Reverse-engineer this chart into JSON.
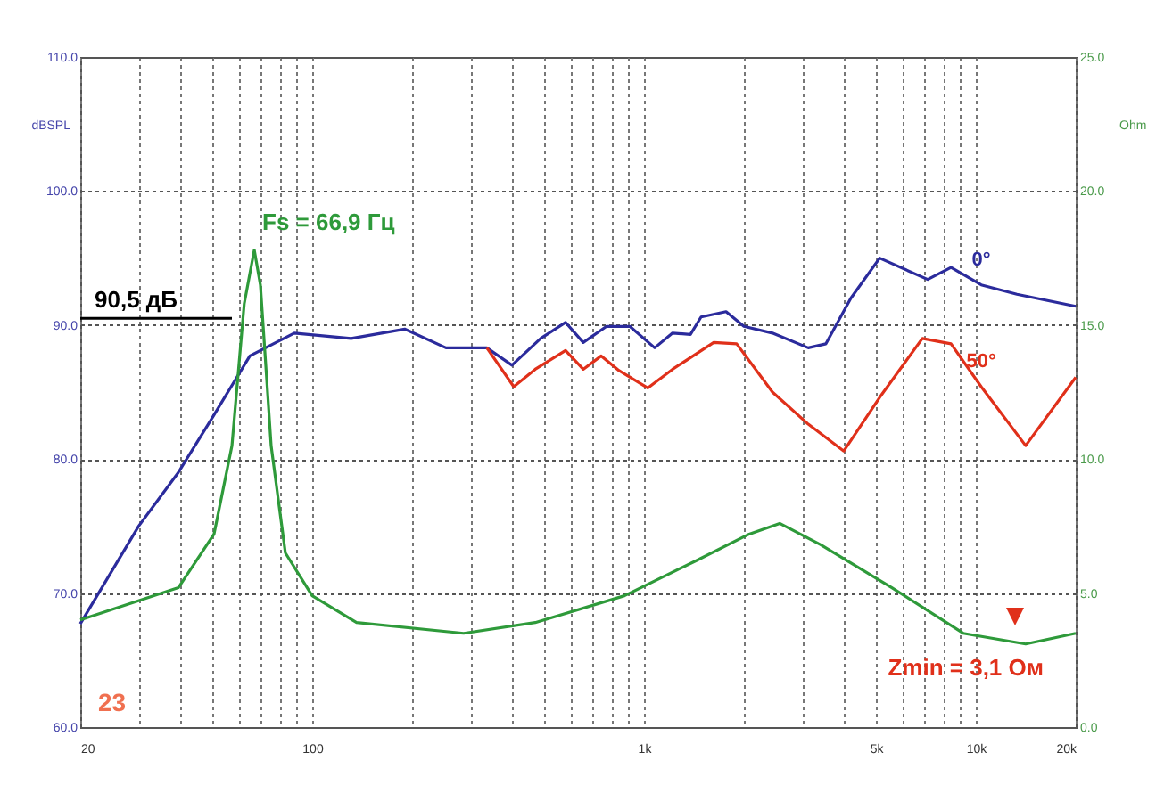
{
  "chart_data": {
    "type": "line",
    "ylabel": "dBSPL",
    "y2label": "Ohm",
    "grid": true,
    "marker": "none",
    "line_style": "solid",
    "xlim": [
      20,
      20000
    ],
    "log": "x",
    "xticks": [
      20,
      {
        "value": 30,
        "label": null
      },
      {
        "value": 40,
        "label": null
      },
      {
        "value": 50,
        "label": null
      },
      {
        "value": 60,
        "label": null
      },
      {
        "value": 70,
        "label": null
      },
      {
        "value": 80,
        "label": null
      },
      {
        "value": 90,
        "label": null
      },
      100,
      {
        "value": 200,
        "label": null
      },
      {
        "value": 300,
        "label": null
      },
      {
        "value": 400,
        "label": null
      },
      {
        "value": 500,
        "label": null
      },
      {
        "value": 600,
        "label": null
      },
      {
        "value": 700,
        "label": null
      },
      {
        "value": 800,
        "label": null
      },
      {
        "value": 900,
        "label": null
      },
      {
        "value": 1000,
        "label": "1k"
      },
      {
        "value": 2000,
        "label": null
      },
      {
        "value": 3000,
        "label": null
      },
      {
        "value": 4000,
        "label": null
      },
      {
        "value": 5000,
        "label": "5k"
      },
      {
        "value": 6000,
        "label": null
      },
      {
        "value": 7000,
        "label": null
      },
      {
        "value": 8000,
        "label": null
      },
      {
        "value": 9000,
        "label": null
      },
      {
        "value": 10000,
        "label": "10k"
      },
      {
        "value": 20000,
        "label": "20k"
      }
    ],
    "ylim": [
      60,
      110
    ],
    "yticks": [
      {
        "value": 60,
        "label": "60.0"
      },
      {
        "value": 70,
        "label": "70.0"
      },
      {
        "value": 80,
        "label": "80.0"
      },
      {
        "value": 90,
        "label": "90.0"
      },
      {
        "value": 100,
        "label": "100.0"
      },
      {
        "value": 110,
        "label": "110.0"
      }
    ],
    "y2lim": [
      0,
      25
    ],
    "y2ticks": [
      {
        "value": 0,
        "label": "0.0"
      },
      {
        "value": 5,
        "label": "5.0"
      },
      {
        "value": 10,
        "label": "10.0"
      },
      {
        "value": 15,
        "label": "15.0"
      },
      {
        "value": 20,
        "label": "20.0"
      },
      {
        "value": 25,
        "label": "25.0"
      }
    ],
    "series": [
      {
        "name": "0°",
        "color": "#2b2b9c",
        "x": [
          20,
          30,
          39.5,
          50.6,
          64.9,
          88.3,
          131,
          190,
          253,
          336,
          400,
          488,
          580,
          656,
          771,
          906,
          1077,
          1219,
          1380,
          1486,
          1767,
          2000,
          2438,
          3126,
          3534,
          4200,
          5130,
          7160,
          8420,
          10380,
          13300,
          20000
        ],
        "values": [
          67.7,
          75,
          79.0,
          83.3,
          87.7,
          89.4,
          89.0,
          89.7,
          88.3,
          88.3,
          87.0,
          89.0,
          90.2,
          88.7,
          89.9,
          89.9,
          88.3,
          89.4,
          89.3,
          90.6,
          91.0,
          89.9,
          89.4,
          88.3,
          88.6,
          92.0,
          95.0,
          93.4,
          94.3,
          93.0,
          92.3,
          91.4
        ]
      },
      {
        "name": "50°",
        "color": "#e0301a",
        "x": [
          336,
          405,
          470,
          580,
          656,
          743,
          841,
          1026,
          1219,
          1622,
          1902,
          2438,
          3126,
          4000,
          5130,
          6900,
          8420,
          10380,
          14130,
          20000
        ],
        "values": [
          88.3,
          85.4,
          86.7,
          88.1,
          86.7,
          87.7,
          86.6,
          85.3,
          86.7,
          88.7,
          88.6,
          85.0,
          82.6,
          80.6,
          84.6,
          89.0,
          88.6,
          85.4,
          81.0,
          86.1
        ]
      },
      {
        "color": "#2e9a3a",
        "axis": "y2",
        "x": [
          20,
          39.5,
          50.6,
          57.3,
          62.4,
          66.9,
          69.8,
          75.2,
          83,
          100,
          136,
          286,
          470,
          873,
          1432,
          2075,
          2564,
          3408,
          5585,
          9160,
          14130,
          20000
        ],
        "values": [
          4.0,
          5.2,
          7.2,
          10.5,
          15.8,
          17.8,
          16.5,
          10.5,
          6.5,
          4.9,
          3.9,
          3.5,
          3.9,
          4.9,
          6.2,
          7.2,
          7.6,
          6.8,
          5.2,
          3.5,
          3.1,
          3.5
        ]
      }
    ],
    "ref_lines": [
      {
        "axis": "y",
        "value": 90.5,
        "label": "90,5 дБ",
        "color": "#000000"
      }
    ],
    "annotations": [
      "Fs = 66,9 Гц",
      "Zmin = 3,1 Ом",
      "23"
    ]
  }
}
